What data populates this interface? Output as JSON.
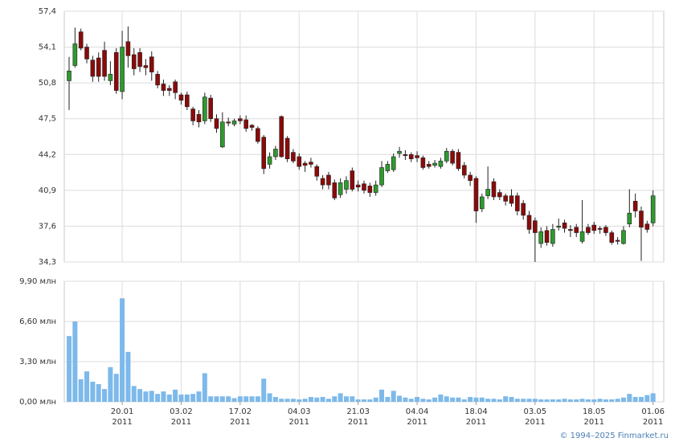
{
  "chart_data": [
    {
      "type": "candlestick",
      "up_color": "#2e9a2e",
      "down_color": "#8b0a0a",
      "grid": true,
      "ylim": [
        34.3,
        57.4
      ],
      "yticks": [
        {
          "value": 34.3,
          "label": "34,3"
        },
        {
          "value": 37.6,
          "label": "37,6"
        },
        {
          "value": 40.9,
          "label": "40,9"
        },
        {
          "value": 44.2,
          "label": "44,2"
        },
        {
          "value": 47.5,
          "label": "47,5"
        },
        {
          "value": 50.8,
          "label": "50,8"
        },
        {
          "value": 54.1,
          "label": "54,1"
        },
        {
          "value": 57.4,
          "label": "57,4"
        }
      ],
      "open": [
        51.0,
        52.4,
        55.5,
        54.1,
        52.9,
        53.1,
        53.8,
        51.0,
        53.6,
        50.0,
        54.6,
        53.4,
        53.6,
        52.4,
        53.2,
        51.6,
        50.7,
        50.3,
        50.9,
        49.7,
        49.7,
        48.4,
        47.9,
        47.3,
        49.4,
        47.5,
        44.9,
        47.2,
        47.0,
        47.5,
        47.4,
        46.9,
        46.6,
        45.8,
        43.3,
        44.0,
        47.7,
        45.7,
        44.4,
        44.0,
        43.4,
        43.5,
        43.1,
        42.0,
        42.3,
        41.6,
        40.5,
        41.0,
        42.7,
        41.4,
        41.5,
        41.3,
        40.7,
        41.4,
        42.7,
        42.8,
        44.3,
        44.2,
        44.2,
        44.1,
        43.9,
        43.3,
        43.2,
        43.1,
        43.6,
        44.5,
        44.4,
        43.2,
        42.3,
        42.0,
        39.2,
        40.4,
        41.7,
        40.7,
        40.4,
        40.4,
        40.4,
        39.7,
        38.6,
        38.1,
        36.0,
        37.2,
        36.0,
        37.5,
        37.9,
        37.3,
        37.5,
        36.2,
        37.5,
        37.7,
        37.4,
        37.5,
        37.0,
        36.3,
        36.0,
        37.8,
        39.9,
        39.0,
        37.8,
        37.9
      ],
      "high": [
        53.2,
        55.9,
        55.8,
        54.4,
        53.3,
        53.6,
        54.6,
        52.8,
        54.0,
        55.6,
        56.0,
        54.0,
        54.0,
        53.0,
        53.7,
        51.9,
        51.1,
        50.6,
        51.1,
        49.9,
        50.0,
        48.6,
        48.3,
        49.9,
        49.7,
        47.9,
        48.1,
        47.6,
        47.5,
        47.8,
        47.8,
        47.0,
        46.8,
        46.0,
        44.4,
        45.0,
        47.8,
        45.9,
        44.7,
        44.3,
        43.6,
        43.9,
        43.3,
        42.3,
        42.6,
        41.9,
        42.0,
        42.2,
        43.0,
        41.8,
        41.8,
        41.6,
        41.8,
        43.6,
        43.6,
        44.3,
        44.9,
        44.6,
        44.4,
        44.5,
        44.1,
        43.6,
        43.7,
        43.9,
        44.8,
        44.7,
        44.7,
        43.5,
        42.6,
        42.2,
        40.6,
        43.1,
        42.0,
        41.0,
        40.6,
        41.0,
        40.7,
        40.0,
        39.0,
        38.4,
        37.5,
        37.6,
        37.8,
        38.3,
        38.2,
        37.7,
        37.8,
        40.0,
        37.8,
        38.0,
        37.6,
        37.7,
        37.2,
        36.6,
        37.6,
        41.0,
        40.6,
        39.4,
        38.1,
        40.9
      ],
      "low": [
        48.3,
        52.2,
        53.8,
        52.6,
        50.9,
        50.9,
        51.0,
        50.6,
        49.8,
        49.3,
        52.2,
        51.5,
        51.8,
        51.5,
        51.0,
        50.3,
        49.6,
        49.6,
        49.3,
        48.8,
        48.3,
        46.9,
        46.7,
        47.0,
        47.2,
        46.2,
        44.8,
        46.8,
        46.8,
        47.0,
        46.3,
        46.4,
        45.2,
        42.4,
        42.9,
        43.7,
        43.9,
        43.5,
        43.4,
        42.8,
        42.6,
        43.0,
        41.8,
        41.0,
        41.0,
        40.0,
        40.2,
        40.6,
        40.8,
        40.8,
        40.6,
        40.3,
        40.4,
        41.2,
        42.5,
        42.6,
        43.9,
        43.7,
        43.5,
        43.5,
        42.8,
        42.9,
        43.0,
        42.9,
        43.4,
        43.2,
        42.7,
        42.0,
        41.3,
        37.9,
        38.9,
        40.1,
        40.0,
        40.0,
        39.5,
        39.4,
        38.6,
        38.2,
        36.9,
        34.3,
        35.6,
        35.8,
        35.7,
        37.2,
        37.0,
        36.6,
        36.6,
        36.0,
        36.8,
        36.9,
        36.9,
        36.7,
        35.9,
        35.9,
        35.9,
        37.5,
        38.4,
        34.4,
        37.0,
        37.6
      ],
      "close": [
        51.9,
        54.4,
        54.0,
        53.0,
        51.4,
        51.4,
        51.4,
        51.6,
        50.1,
        54.1,
        53.3,
        52.1,
        52.3,
        52.2,
        51.8,
        50.6,
        50.1,
        50.1,
        49.9,
        49.2,
        48.6,
        47.3,
        47.2,
        49.5,
        47.5,
        46.6,
        47.2,
        47.1,
        47.3,
        47.3,
        46.6,
        46.7,
        45.4,
        42.9,
        44.0,
        44.7,
        44.0,
        43.8,
        43.6,
        43.1,
        43.2,
        43.3,
        42.2,
        41.4,
        41.4,
        40.2,
        41.6,
        41.8,
        41.0,
        41.2,
        40.9,
        40.7,
        41.4,
        43.0,
        43.3,
        44.0,
        44.5,
        44.1,
        43.8,
        43.9,
        43.0,
        43.1,
        43.4,
        43.6,
        44.5,
        43.4,
        42.9,
        42.3,
        41.8,
        39.0,
        40.3,
        41.0,
        40.3,
        40.3,
        39.9,
        39.7,
        39.0,
        38.6,
        37.3,
        37.0,
        37.1,
        36.1,
        37.3,
        37.6,
        37.4,
        37.2,
        37.0,
        37.1,
        37.0,
        37.2,
        37.3,
        37.0,
        36.1,
        36.2,
        37.2,
        38.8,
        39.0,
        37.5,
        37.3,
        40.4
      ]
    },
    {
      "type": "bar",
      "color": "#7db9ea",
      "grid": true,
      "ylim": [
        0,
        9.9
      ],
      "yticks": [
        {
          "value": 0,
          "label": "0,00 млн"
        },
        {
          "value": 3.3,
          "label": "3,30 млн"
        },
        {
          "value": 6.6,
          "label": "6,60 млн"
        },
        {
          "value": 9.9,
          "label": "9,90 млн"
        }
      ],
      "categories": [
        null,
        null,
        null,
        null,
        null,
        null,
        null,
        null,
        null,
        "20.01",
        null,
        null,
        null,
        null,
        null,
        null,
        null,
        null,
        null,
        "03.02",
        null,
        null,
        null,
        null,
        null,
        null,
        null,
        null,
        null,
        "17.02",
        null,
        null,
        null,
        null,
        null,
        null,
        null,
        null,
        null,
        "04.03",
        null,
        null,
        null,
        null,
        null,
        null,
        null,
        null,
        null,
        "21.03",
        null,
        null,
        null,
        null,
        null,
        null,
        null,
        null,
        null,
        "04.04",
        null,
        null,
        null,
        null,
        null,
        null,
        null,
        null,
        null,
        "18.04",
        null,
        null,
        null,
        null,
        null,
        null,
        null,
        null,
        null,
        "03.05",
        null,
        null,
        null,
        null,
        null,
        null,
        null,
        null,
        null,
        "18.05",
        null,
        null,
        null,
        null,
        null,
        null,
        null,
        null,
        null,
        "01.06"
      ],
      "year": "2011",
      "values": [
        5.4,
        6.6,
        1.85,
        2.5,
        1.65,
        1.45,
        1.05,
        2.85,
        2.3,
        8.5,
        4.1,
        1.3,
        1.05,
        0.85,
        0.9,
        0.65,
        0.85,
        0.6,
        1.0,
        0.6,
        0.6,
        0.65,
        0.85,
        2.35,
        0.45,
        0.45,
        0.45,
        0.45,
        0.3,
        0.45,
        0.45,
        0.45,
        0.45,
        1.9,
        0.7,
        0.4,
        0.25,
        0.25,
        0.25,
        0.2,
        0.25,
        0.4,
        0.35,
        0.4,
        0.25,
        0.45,
        0.7,
        0.45,
        0.45,
        0.2,
        0.2,
        0.2,
        0.35,
        1.0,
        0.4,
        0.9,
        0.5,
        0.35,
        0.25,
        0.4,
        0.25,
        0.2,
        0.35,
        0.6,
        0.45,
        0.35,
        0.35,
        0.2,
        0.4,
        0.35,
        0.35,
        0.25,
        0.25,
        0.2,
        0.45,
        0.4,
        0.25,
        0.25,
        0.25,
        0.25,
        0.2,
        0.2,
        0.2,
        0.2,
        0.25,
        0.2,
        0.2,
        0.25,
        0.2,
        0.2,
        0.25,
        0.2,
        0.2,
        0.25,
        0.35,
        0.65,
        0.4,
        0.4,
        0.55,
        0.7
      ]
    },
    {
      "type": "footer",
      "text": "© 1994–2025 Finmarket.ru"
    }
  ]
}
